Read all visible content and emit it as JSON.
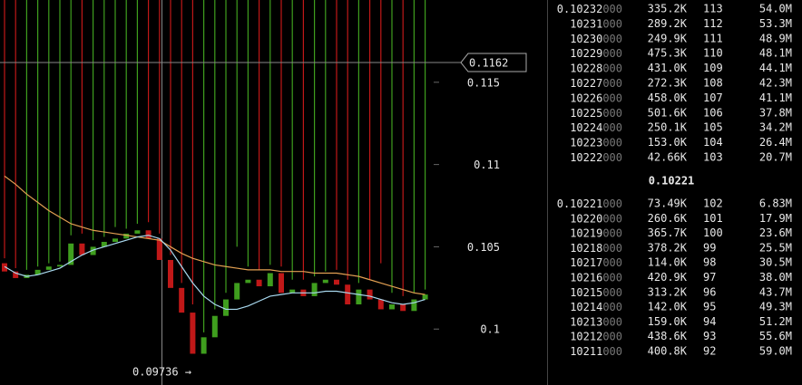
{
  "chart_data": {
    "type": "candlestick",
    "open": [
      0.104,
      0.1035,
      0.1031,
      0.1033,
      0.1036,
      0.1038,
      0.1039,
      0.1052,
      0.1045,
      0.105,
      0.1053,
      0.1055,
      0.1058,
      0.106,
      0.1055,
      0.1042,
      0.1025,
      0.101,
      0.0985,
      0.0995,
      0.1008,
      0.1018,
      0.1028,
      0.103,
      0.1026,
      0.1034,
      0.1022,
      0.1024,
      0.102,
      0.1028,
      0.103,
      0.1027,
      0.1015,
      0.1024,
      0.1018,
      0.1012,
      0.1015,
      0.1011,
      0.1018
    ],
    "high": [
      0.1043,
      0.1037,
      0.1036,
      0.1038,
      0.104,
      0.1041,
      0.1057,
      0.1058,
      0.1054,
      0.1056,
      0.1062,
      0.1061,
      0.1064,
      0.1065,
      0.1058,
      0.1045,
      0.1028,
      0.1015,
      0.0998,
      0.1012,
      0.1022,
      0.105,
      0.1038,
      0.1036,
      0.1039,
      0.1038,
      0.103,
      0.103,
      0.1032,
      0.1035,
      0.1036,
      0.103,
      0.1028,
      0.103,
      0.104,
      0.1022,
      0.102,
      0.1022,
      0.1024
    ],
    "low": {
      "value": 0.09736,
      "label": "0.09736 →"
    },
    "close": [
      0.1035,
      0.1031,
      0.1033,
      0.1036,
      0.1038,
      0.1039,
      0.1052,
      0.1045,
      0.105,
      0.1053,
      0.1055,
      0.1058,
      0.106,
      0.1055,
      0.1042,
      0.1025,
      0.101,
      0.0985,
      0.0995,
      0.1008,
      0.1018,
      0.1028,
      0.103,
      0.1026,
      0.1034,
      0.1022,
      0.1024,
      0.102,
      0.1028,
      0.103,
      0.1027,
      0.1015,
      0.1024,
      0.1018,
      0.1012,
      0.1015,
      0.1011,
      0.1018,
      0.1021
    ],
    "up_color": "#3f9e1e",
    "down_color": "#c01818",
    "lines": [
      {
        "color": "#e3a052",
        "values": [
          0.1093,
          0.1088,
          0.1082,
          0.1077,
          0.1072,
          0.1068,
          0.1064,
          0.1062,
          0.106,
          0.1059,
          0.1058,
          0.1057,
          0.1056,
          0.1055,
          0.1054,
          0.105,
          0.1046,
          0.1043,
          0.1041,
          0.1039,
          0.1038,
          0.1037,
          0.1036,
          0.1036,
          0.1036,
          0.1035,
          0.1035,
          0.1035,
          0.1034,
          0.1034,
          0.1034,
          0.1033,
          0.1032,
          0.103,
          0.1028,
          0.1026,
          0.1024,
          0.1022,
          0.1021
        ]
      },
      {
        "color": "#a9d9ef",
        "values": [
          0.1038,
          0.1034,
          0.1032,
          0.1033,
          0.1035,
          0.1037,
          0.1041,
          0.1045,
          0.1048,
          0.105,
          0.1052,
          0.1054,
          0.1056,
          0.1057,
          0.1055,
          0.1048,
          0.1038,
          0.1028,
          0.102,
          0.1015,
          0.1012,
          0.1012,
          0.1014,
          0.1017,
          0.102,
          0.1021,
          0.1022,
          0.1022,
          0.1022,
          0.1023,
          0.1023,
          0.1022,
          0.1021,
          0.102,
          0.1018,
          0.1016,
          0.1015,
          0.1016,
          0.1018
        ]
      }
    ],
    "ylim": [
      0.0966,
      0.12
    ],
    "yticks": [
      0.1,
      0.105,
      0.11,
      0.115
    ],
    "crosshair_value": 0.1162
  },
  "order_book": {
    "price_suffix": "000",
    "asks": [
      [
        "0.10232",
        "335.2K",
        113,
        "54.0M"
      ],
      [
        "10231",
        "289.2K",
        112,
        "53.3M"
      ],
      [
        "10230",
        "249.9K",
        111,
        "48.9M"
      ],
      [
        "10229",
        "475.3K",
        110,
        "48.1M"
      ],
      [
        "10228",
        "431.0K",
        109,
        "44.1M"
      ],
      [
        "10227",
        "272.3K",
        108,
        "42.3M"
      ],
      [
        "10226",
        "458.0K",
        107,
        "41.1M"
      ],
      [
        "10225",
        "501.6K",
        106,
        "37.8M"
      ],
      [
        "10224",
        "250.1K",
        105,
        "34.2M"
      ],
      [
        "10223",
        "153.0K",
        104,
        "26.4M"
      ],
      [
        "10222",
        "42.66K",
        103,
        "20.7M"
      ]
    ],
    "last": 0.10221,
    "bids": [
      [
        "0.10221",
        "73.49K",
        102,
        "6.83M"
      ],
      [
        "10220",
        "260.6K",
        101,
        "17.9M"
      ],
      [
        "10219",
        "365.7K",
        100,
        "23.6M"
      ],
      [
        "10218",
        "378.2K",
        99,
        "25.5M"
      ],
      [
        "10217",
        "114.0K",
        98,
        "30.5M"
      ],
      [
        "10216",
        "420.9K",
        97,
        "38.0M"
      ],
      [
        "10215",
        "313.2K",
        96,
        "43.7M"
      ],
      [
        "10214",
        "142.0K",
        95,
        "49.3M"
      ],
      [
        "10213",
        "159.0K",
        94,
        "51.2M"
      ],
      [
        "10212",
        "438.6K",
        93,
        "55.6M"
      ],
      [
        "10211",
        "400.8K",
        92,
        "59.0M"
      ]
    ]
  }
}
